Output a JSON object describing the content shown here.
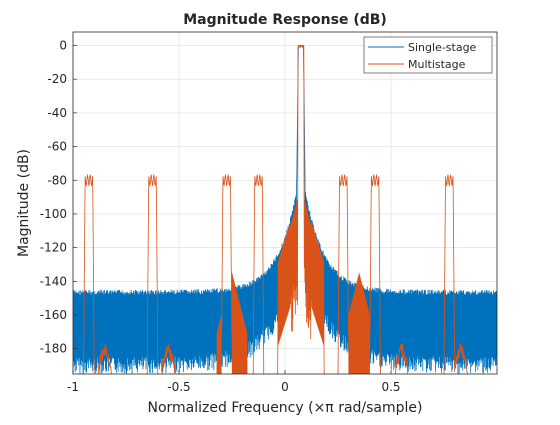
{
  "chart_data": {
    "type": "line",
    "title": "Magnitude Response (dB)",
    "xlabel": "Normalized Frequency (×π rad/sample)",
    "ylabel": "Magnitude (dB)",
    "xlim": [
      -1,
      1
    ],
    "ylim": [
      -195,
      8
    ],
    "xticks": [
      -1,
      -0.5,
      0,
      0.5
    ],
    "xtick_labels": [
      "-1",
      "-0.5",
      "0",
      "0.5"
    ],
    "yticks": [
      0,
      -20,
      -40,
      -60,
      -80,
      -100,
      -120,
      -140,
      -160,
      -180
    ],
    "ytick_labels": [
      "0",
      "-20",
      "-40",
      "-60",
      "-80",
      "-100",
      "-120",
      "-140",
      "-160",
      "-180"
    ],
    "grid": true,
    "legend_position": "top-right",
    "passband_center": 0.075,
    "series": [
      {
        "name": "Single-stage",
        "color": "#0072BD",
        "description_points": {
          "passband_peak_db": 0,
          "sidelobe_near_passband_db": -85,
          "sidelobe_floor_upper_db": -145,
          "sidelobe_floor_lower_db": -185
        }
      },
      {
        "name": "Multistage",
        "color": "#D95319",
        "description_points": {
          "passband_peak_db": 0,
          "image_lobe_peak_db": -80,
          "image_lobe_centers": [
            -0.925,
            -0.625,
            -0.275,
            -0.125,
            0.275,
            0.425,
            0.775
          ]
        }
      }
    ]
  }
}
